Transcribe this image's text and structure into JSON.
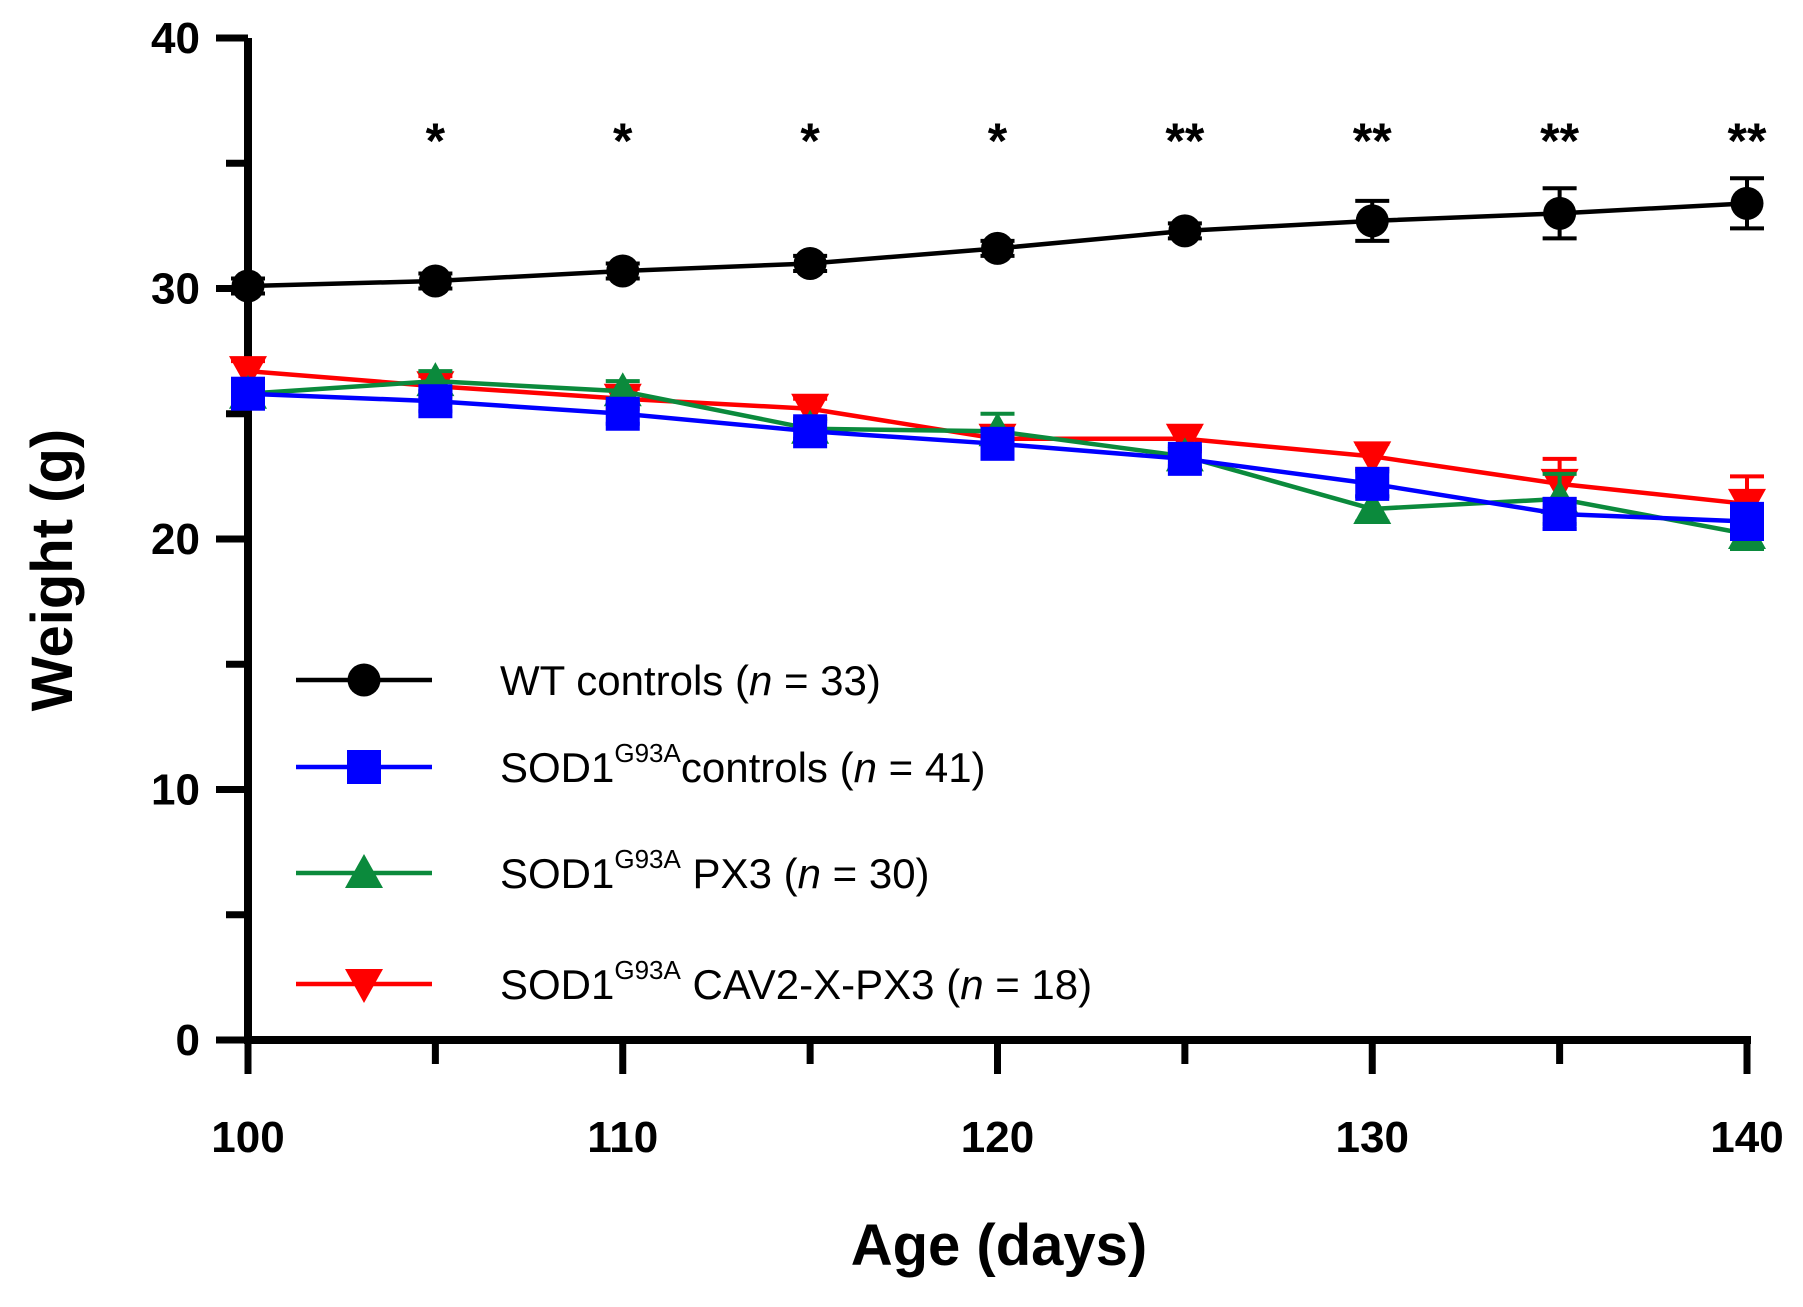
{
  "chart_data": {
    "type": "line",
    "title": "",
    "xlabel": "Age (days)",
    "ylabel": "Weight (g)",
    "xlim": [
      100,
      140
    ],
    "ylim": [
      0,
      40
    ],
    "x_ticks": [
      100,
      110,
      120,
      130,
      140
    ],
    "x_minor_ticks": [
      105,
      115,
      125,
      135
    ],
    "y_ticks": [
      0,
      10,
      20,
      30,
      40
    ],
    "y_minor_ticks": [
      5,
      15,
      25,
      35
    ],
    "x": [
      100,
      105,
      110,
      115,
      120,
      125,
      130,
      135,
      140
    ],
    "significance": [
      {
        "x": 105,
        "label": "*"
      },
      {
        "x": 110,
        "label": "*"
      },
      {
        "x": 115,
        "label": "*"
      },
      {
        "x": 120,
        "label": "*"
      },
      {
        "x": 125,
        "label": "**"
      },
      {
        "x": 130,
        "label": "**"
      },
      {
        "x": 135,
        "label": "**"
      },
      {
        "x": 140,
        "label": "**"
      }
    ],
    "legend_position": "lower-left",
    "series": [
      {
        "name": "WT controls",
        "legend_base": "WT controls",
        "legend_sup": "",
        "legend_suffix": "",
        "n_label": "n",
        "n_value": "= 33",
        "color": "#000000",
        "marker": "circle",
        "values": [
          30.1,
          30.3,
          30.7,
          31.0,
          31.6,
          32.3,
          32.7,
          33.0,
          33.4
        ],
        "errors": [
          0.3,
          0.3,
          0.3,
          0.3,
          0.3,
          0.3,
          0.8,
          1.0,
          1.0
        ]
      },
      {
        "name": "SOD1 G93A controls",
        "legend_base": "SOD1",
        "legend_sup": "G93A",
        "legend_suffix": "controls  ",
        "n_label": "n",
        "n_value": "= 41",
        "color": "#0000ff",
        "marker": "square",
        "values": [
          25.8,
          25.5,
          25.0,
          24.3,
          23.8,
          23.2,
          22.2,
          21.0,
          20.7
        ],
        "errors": [
          0.4,
          0.4,
          0.4,
          0.4,
          0.4,
          0.4,
          0.5,
          0.6,
          0.7
        ]
      },
      {
        "name": "SOD1 G93A PX3",
        "legend_base": "SOD1",
        "legend_sup": "G93A",
        "legend_suffix": " PX3 ",
        "n_label": "n",
        "n_value": "= 30",
        "color": "#0b8a3c",
        "marker": "triangle-up",
        "values": [
          25.8,
          26.3,
          25.9,
          24.4,
          24.3,
          23.3,
          21.2,
          21.6,
          20.2
        ],
        "errors": [
          0.4,
          0.4,
          0.4,
          0.4,
          0.7,
          0.4,
          0.5,
          1.0,
          0.6
        ]
      },
      {
        "name": "SOD1 G93A CAV2-X-PX3",
        "legend_base": "SOD1",
        "legend_sup": "G93A",
        "legend_suffix": " CAV2-X-PX3 ",
        "n_label": "n",
        "n_value": "= 18",
        "color": "#ff0000",
        "marker": "triangle-down",
        "values": [
          26.7,
          26.1,
          25.6,
          25.2,
          24.0,
          24.0,
          23.3,
          22.2,
          21.4
        ],
        "errors": [
          0.4,
          0.4,
          0.4,
          0.4,
          0.4,
          0.5,
          0.5,
          1.0,
          1.1
        ]
      }
    ]
  }
}
